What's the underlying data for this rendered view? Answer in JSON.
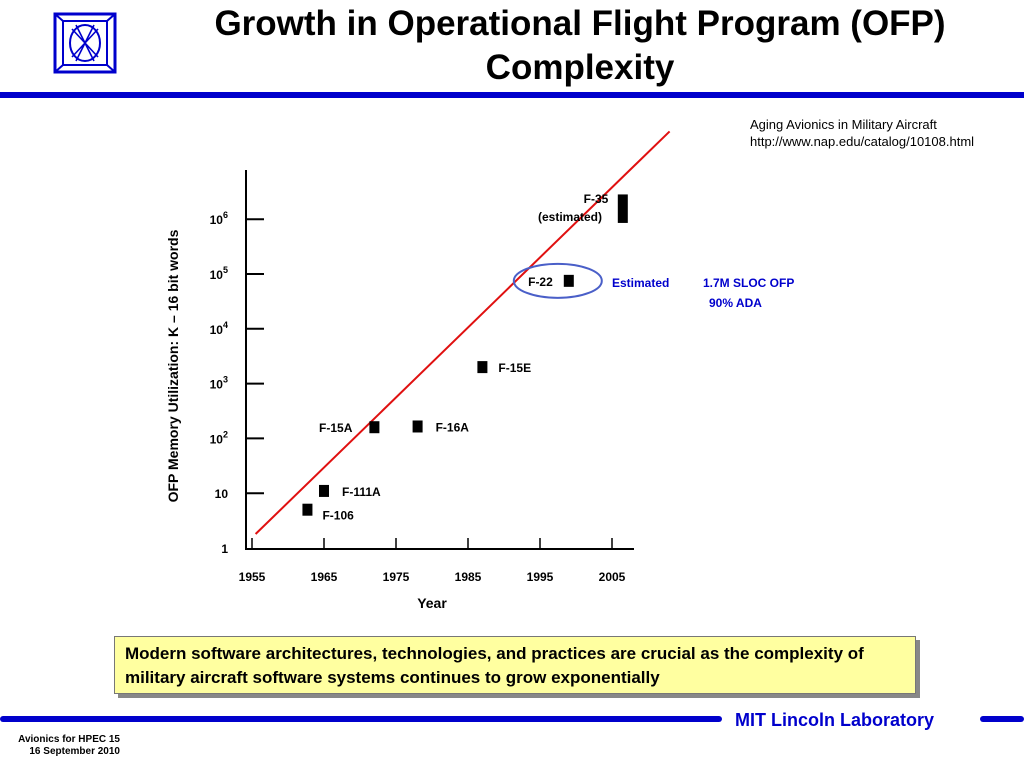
{
  "slide": {
    "title_line1": "Growth in Operational Flight Program (OFP)",
    "title_line2": "Complexity",
    "source_line1": "Aging Avionics in Military Aircraft",
    "source_line2": "http://www.nap.edu/catalog/10108.html",
    "callout": "Modern software architectures, technologies, and practices are crucial  as the complexity of military aircraft software systems continues to grow exponentially",
    "footer_lab": "MIT Lincoln Laboratory",
    "footer_course": "Avionics for HPEC  15",
    "footer_date": "16 September 2010",
    "colors": {
      "accent_blue": "#0000cc",
      "trend_red": "#e01010",
      "callout_bg": "#ffffa0",
      "annotation_blue": "#0000cc"
    }
  },
  "chart_data": {
    "type": "scatter",
    "xlabel": "Year",
    "ylabel": "OFP Memory Utilization:  K – 16 bit words",
    "x_ticks": [
      1955,
      1965,
      1975,
      1985,
      1995,
      2005
    ],
    "y_ticks": [
      {
        "value": 1,
        "label": "1"
      },
      {
        "value": 10,
        "label": "10"
      },
      {
        "value": 100,
        "label": "10",
        "exp": "2"
      },
      {
        "value": 1000,
        "label": "10",
        "exp": "3"
      },
      {
        "value": 10000,
        "label": "10",
        "exp": "4"
      },
      {
        "value": 100000,
        "label": "10",
        "exp": "5"
      },
      {
        "value": 1000000,
        "label": "10",
        "exp": "6"
      }
    ],
    "y_scale": "log",
    "xlim": [
      1954,
      2008
    ],
    "ylim": [
      1,
      10000000
    ],
    "points": [
      {
        "name": "F-106",
        "x": 1962.7,
        "y": 5,
        "y_hi": 5
      },
      {
        "name": "F-111A",
        "x": 1965,
        "y": 11,
        "y_hi": 11
      },
      {
        "name": "F-15A",
        "x": 1972,
        "y": 160,
        "y_hi": 160
      },
      {
        "name": "F-16A",
        "x": 1978,
        "y": 165,
        "y_hi": 165
      },
      {
        "name": "F-15E",
        "x": 1987,
        "y": 2000,
        "y_hi": 2000
      },
      {
        "name": "F-22",
        "x": 1999,
        "y": 75000,
        "y_hi": 75000
      },
      {
        "name": "F-35",
        "x": 2006.5,
        "y": 1100000,
        "y_hi": 2200000
      }
    ],
    "f35_note": "(estimated)",
    "trend_line": {
      "x1": 1955.5,
      "y1": 1.8,
      "x2": 2013,
      "y2": 40000000
    },
    "f22_annotation": {
      "word1": "Estimated",
      "line1": "1.7M SLOC OFP",
      "line2": "90% ADA"
    }
  }
}
